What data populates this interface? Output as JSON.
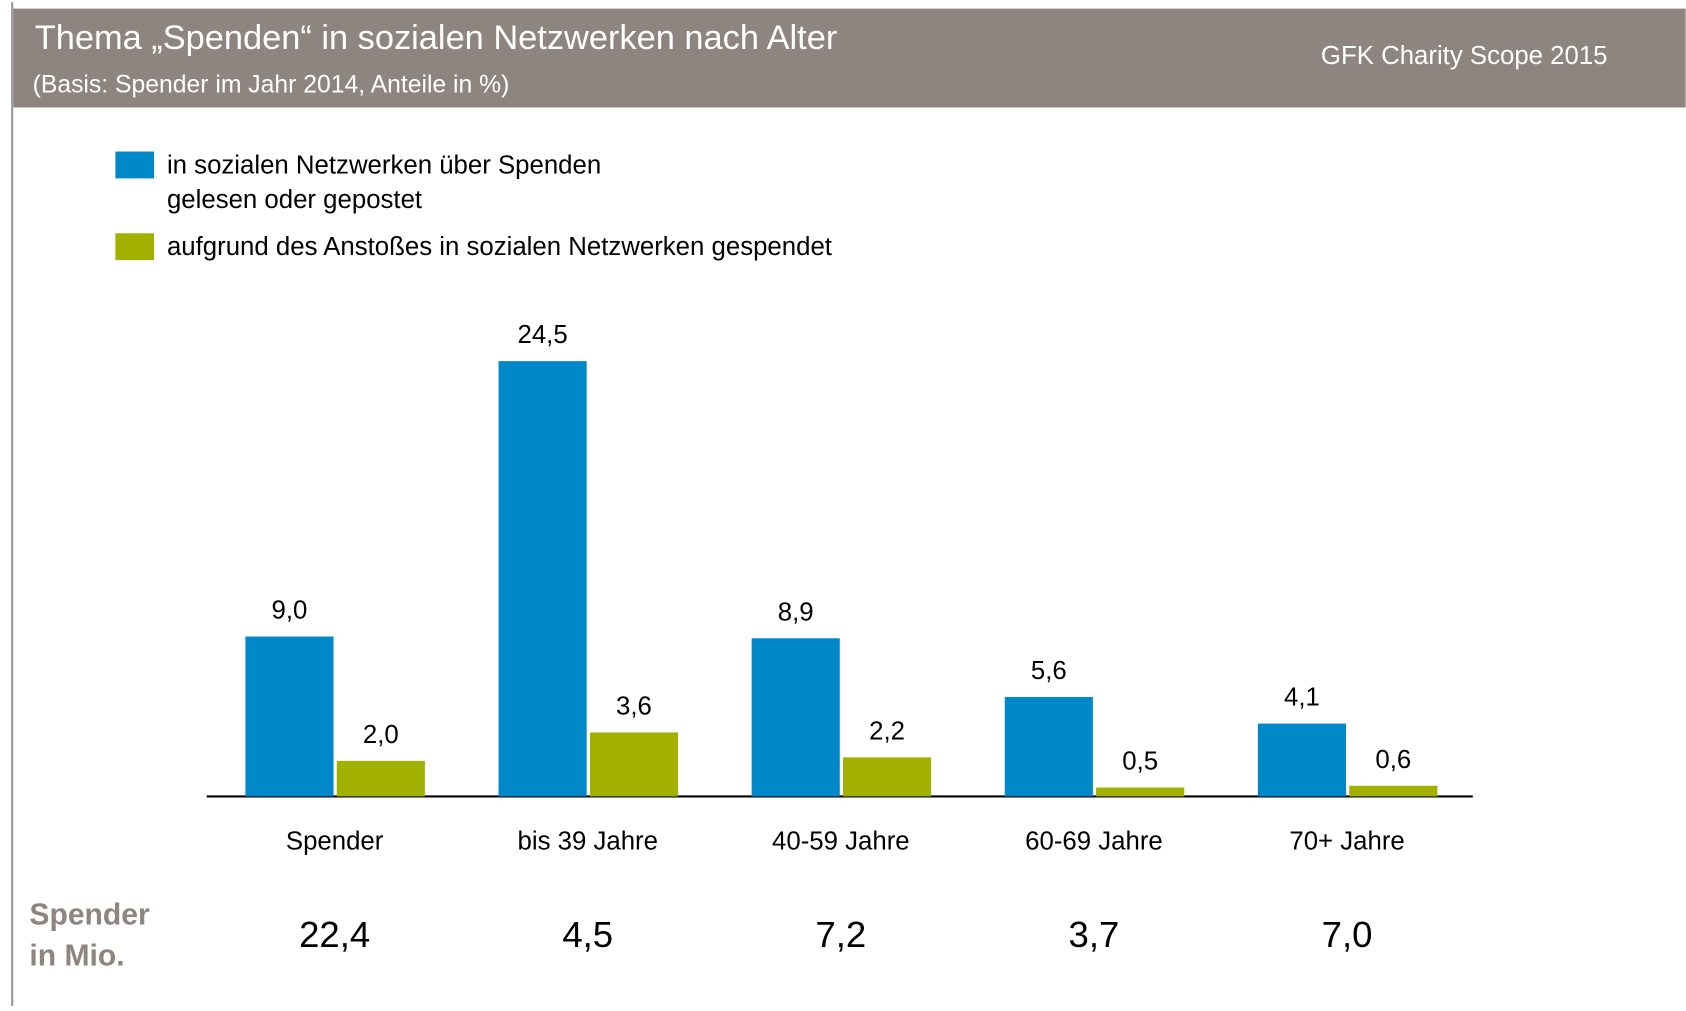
{
  "chart_data": {
    "type": "bar",
    "title": "Thema „Spenden“ in sozialen Netzwerken nach Alter",
    "subtitle": "(Basis: Spender im Jahr 2014, Anteile in %)",
    "source": "GFK Charity Scope 2015",
    "categories": [
      "Spender",
      "bis 39 Jahre",
      "40-59 Jahre",
      "60-69 Jahre",
      "70+ Jahre"
    ],
    "series": [
      {
        "name": "in sozialen Netzwerken über Spenden gelesen oder gepostet",
        "color": "#0088c8",
        "values": [
          9.0,
          24.5,
          8.9,
          5.6,
          4.1
        ],
        "value_labels": [
          "9,0",
          "24,5",
          "8,9",
          "5,6",
          "4,1"
        ]
      },
      {
        "name": "aufgrund des Anstoßes in sozialen Netzwerken gespendet",
        "color": "#a2b000",
        "values": [
          2.0,
          3.6,
          2.2,
          0.5,
          0.6
        ],
        "value_labels": [
          "2,0",
          "3,6",
          "2,2",
          "0,5",
          "0,6"
        ]
      }
    ],
    "donors": {
      "label": [
        "Spender",
        "in Mio."
      ],
      "values": [
        22.4,
        4.5,
        7.2,
        3.7,
        7.0
      ],
      "value_labels": [
        "22,4",
        "4,5",
        "7,2",
        "3,7",
        "7,0"
      ]
    }
  }
}
